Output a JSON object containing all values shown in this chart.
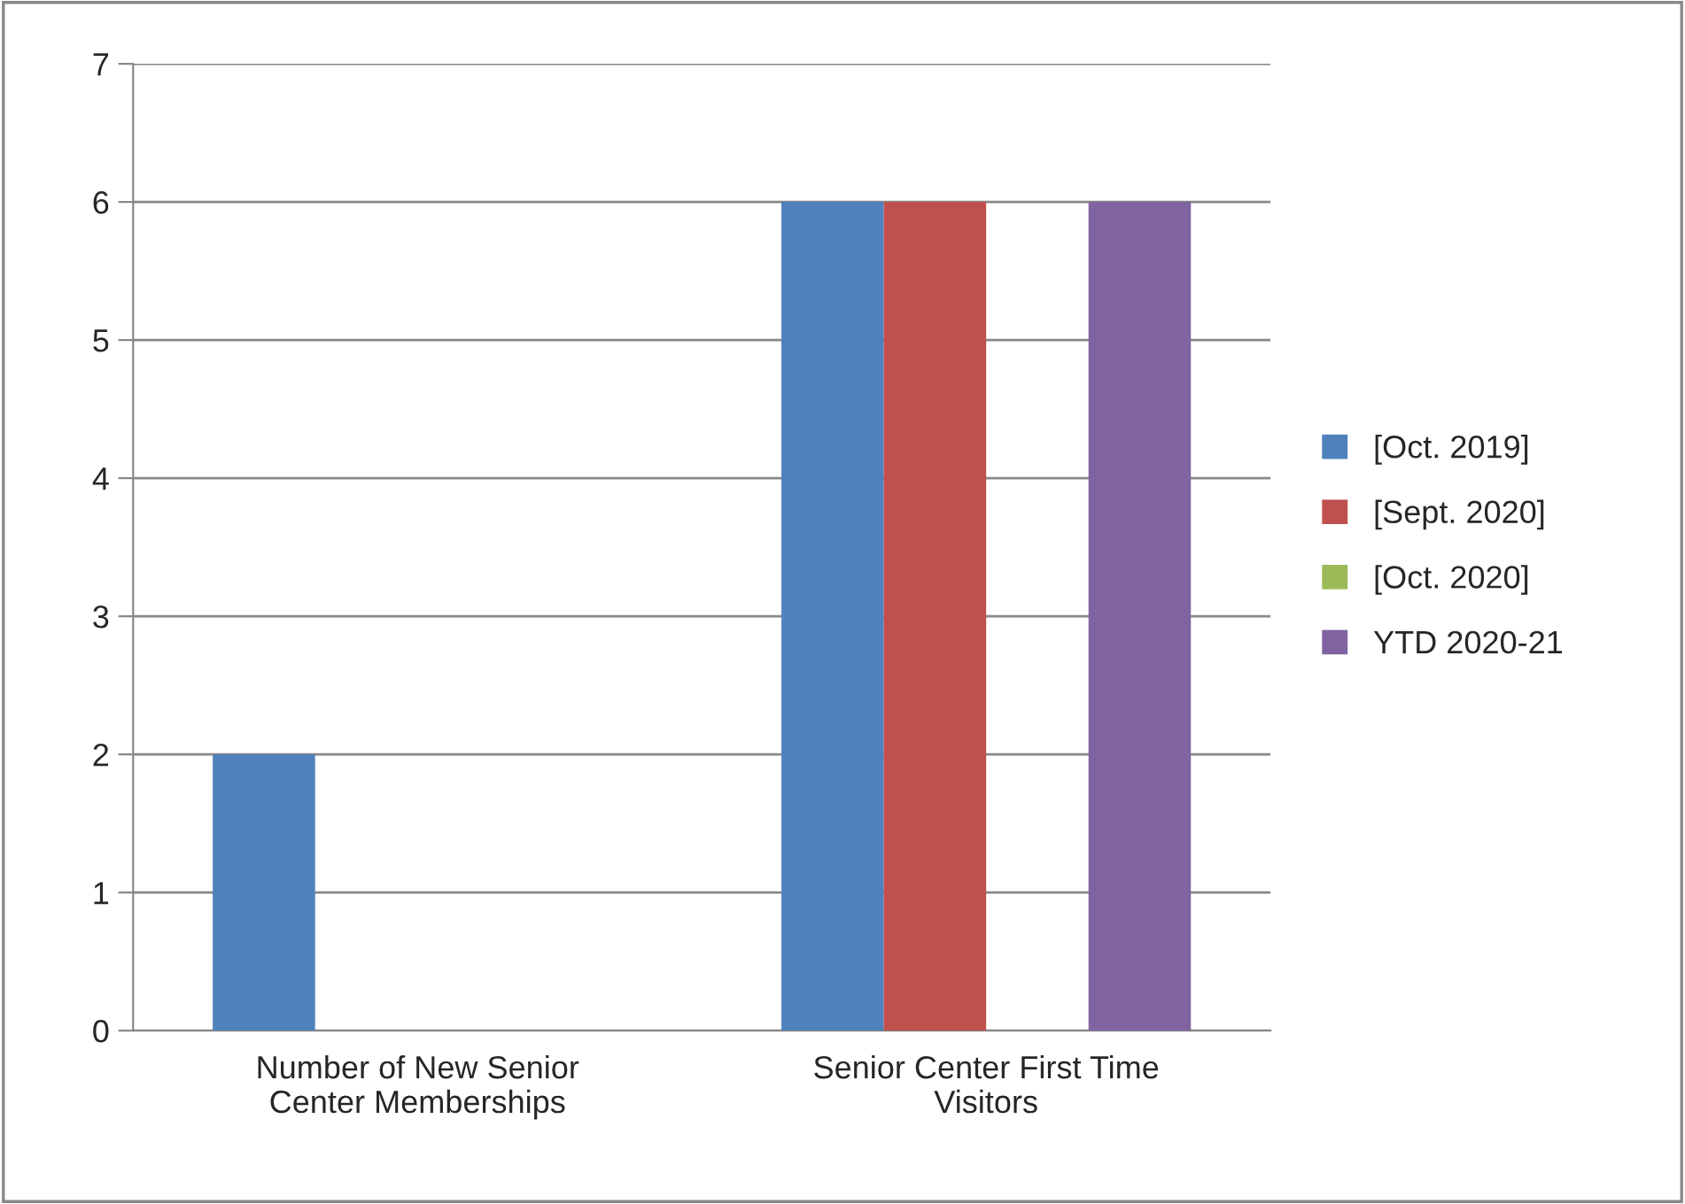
{
  "chart_data": {
    "type": "bar",
    "categories": [
      "Number of New Senior\nCenter Memberships",
      "Senior Center First Time\nVisitors"
    ],
    "series": [
      {
        "name": "[Oct. 2019]",
        "color": "#4f81bd",
        "values": [
          2,
          6
        ]
      },
      {
        "name": "[Sept. 2020]",
        "color": "#c0504d",
        "values": [
          0,
          6
        ]
      },
      {
        "name": "[Oct. 2020]",
        "color": "#9bbb59",
        "values": [
          0,
          0
        ]
      },
      {
        "name": "YTD 2020-21",
        "color": "#8064a2",
        "values": [
          0,
          6
        ]
      }
    ],
    "ylim": [
      0,
      7
    ],
    "yticks": [
      0,
      1,
      2,
      3,
      4,
      5,
      6,
      7
    ],
    "grid": "y",
    "legend": "right"
  }
}
